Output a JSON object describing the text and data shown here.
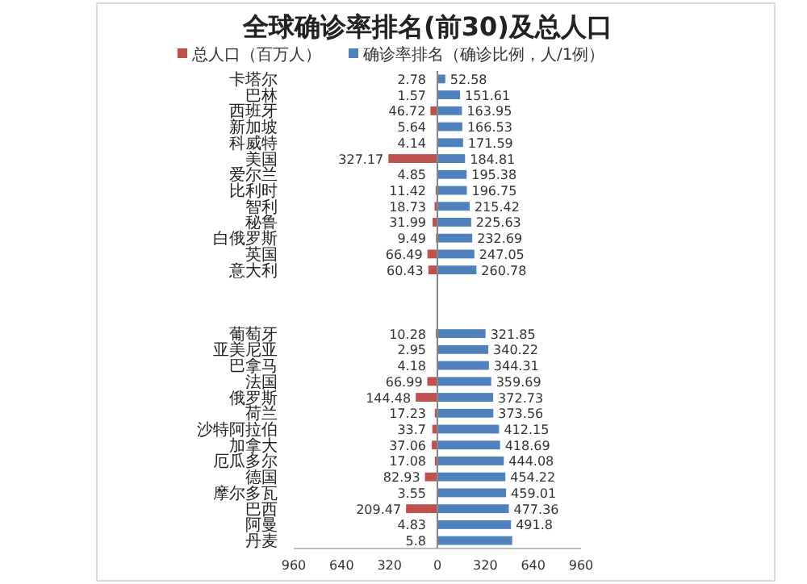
{
  "chart_data": [
    {
      "type": "bar",
      "orientation": "horizontal",
      "title": "全球确诊率排名(前30)及总人口",
      "categories": [
        "卡塔尔",
        "巴林",
        "西班牙",
        "新加坡",
        "科威特",
        "美国",
        "爱尔兰",
        "比利时",
        "智利",
        "秘鲁",
        "白俄罗斯",
        "英国",
        "意大利",
        null,
        null,
        null,
        "葡萄牙",
        "亚美尼亚",
        "巴拿马",
        "法国",
        "俄罗斯",
        "荷兰",
        "沙特阿拉伯",
        "加拿大",
        "厄瓜多尔",
        "德国",
        "摩尔多瓦",
        "巴西",
        "阿曼",
        "丹麦"
      ],
      "series": [
        {
          "name": "总人口（百万人）",
          "color": "#c0504d",
          "values": [
            2.78,
            1.57,
            46.72,
            5.64,
            4.14,
            327.17,
            4.85,
            11.42,
            18.73,
            31.99,
            9.49,
            66.49,
            60.43,
            null,
            null,
            null,
            10.28,
            2.95,
            4.18,
            66.99,
            144.48,
            17.23,
            33.7,
            37.06,
            17.08,
            82.93,
            3.55,
            209.47,
            4.83,
            5.8
          ]
        }
      ],
      "data_labels": true,
      "xlim": [
        960,
        0
      ],
      "xticks": [
        960,
        640,
        320,
        0
      ],
      "legend": "top"
    },
    {
      "type": "bar",
      "orientation": "horizontal",
      "categories": [
        null,
        null,
        null,
        null,
        null,
        null,
        null,
        null,
        null,
        null,
        null,
        null,
        null,
        null,
        null,
        null,
        null,
        null,
        null,
        null,
        null,
        null,
        null,
        null,
        null,
        null,
        null,
        null,
        null,
        null
      ],
      "series": [
        {
          "name": "确诊率排名（确诊比例，人/1例）",
          "color": "#4f81bd",
          "values": [
            52.58,
            151.61,
            163.95,
            166.53,
            171.59,
            184.81,
            195.38,
            196.75,
            215.42,
            225.63,
            232.69,
            247.05,
            260.78,
            null,
            null,
            null,
            321.85,
            340.22,
            344.31,
            359.69,
            372.73,
            373.56,
            412.15,
            418.69,
            444.08,
            454.22,
            459.01,
            477.36,
            491.8,
            500
          ],
          "value_labels": [
            "52.58",
            "151.61",
            "163.95",
            "166.53",
            "171.59",
            "184.81",
            "195.38",
            "196.75",
            "215.42",
            "225.63",
            "232.69",
            "247.05",
            "260.78",
            null,
            null,
            null,
            "321.85",
            "340.22",
            "344.31",
            "359.69",
            "372.73",
            "373.56",
            "412.15",
            "418.69",
            "444.08",
            "454.22",
            "459.01",
            "477.36",
            "491.8",
            null
          ]
        }
      ],
      "xlim": [
        0,
        960
      ],
      "xticks": [
        320,
        640,
        960
      ],
      "tick_labels": "x",
      "legend": "top"
    }
  ]
}
